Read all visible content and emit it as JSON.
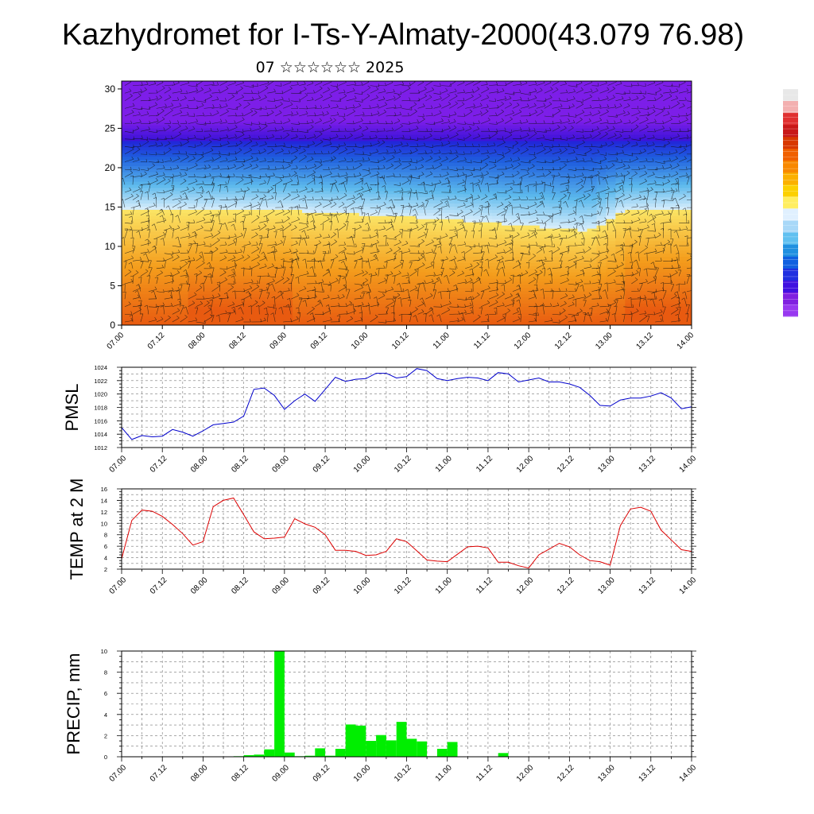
{
  "title": "Kazhydromet for I-Ts-Y-Almaty-2000(43.079 76.98)",
  "subtitle": "07 ☆☆☆☆☆☆ 2025",
  "time_ticks": [
    "07.00",
    "07.12",
    "08.00",
    "08.12",
    "09.00",
    "09.12",
    "10.00",
    "10.12",
    "11.00",
    "11.12",
    "12.00",
    "12.12",
    "13.00",
    "13.12",
    "14.00"
  ],
  "colorbar_colors": [
    "#e8e8e8",
    "#f3b0b0",
    "#e03030",
    "#c81818",
    "#d83800",
    "#f06000",
    "#f88800",
    "#fbb000",
    "#fcd000",
    "#ffee60",
    "#e0f0ff",
    "#a8d8f8",
    "#60c0f0",
    "#2090e0",
    "#1060e0",
    "#2030e0",
    "#4010e0",
    "#8020e0",
    "#9838f0"
  ],
  "chart_data": [
    {
      "type": "heatmap",
      "title": "",
      "xlabel": "",
      "ylabel": "",
      "x_ticks": [
        "07.00",
        "07.12",
        "08.00",
        "08.12",
        "09.00",
        "09.12",
        "10.00",
        "10.12",
        "11.00",
        "11.12",
        "12.00",
        "12.12",
        "13.00",
        "13.12",
        "14.00"
      ],
      "y_ticks": [
        0,
        5,
        10,
        15,
        20,
        25,
        30
      ],
      "ylim": [
        0,
        31
      ],
      "color_scale": "violet (top) – blue – light blue – yellow – orange (bottom), with wind barbs overlay",
      "layer_boundaries": [
        {
          "name": "yellow_to_blue",
          "x": [
            0,
            4,
            8,
            11.5,
            12.3,
            14
          ],
          "y": [
            14.8,
            14.6,
            13.5,
            12.0,
            14.5,
            14.8
          ]
        },
        {
          "name": "blue_to_violet",
          "x": [
            0,
            14
          ],
          "y": [
            23.5,
            23.5
          ]
        }
      ]
    },
    {
      "type": "line",
      "ylabel": "PMSL",
      "ylim": [
        1012,
        1024
      ],
      "y_ticks": [
        1012,
        1014,
        1016,
        1018,
        1020,
        1022,
        1024
      ],
      "color": "#0000cc",
      "x": [
        0,
        0.25,
        0.5,
        0.75,
        1,
        1.25,
        1.5,
        1.75,
        2,
        2.25,
        2.5,
        2.75,
        3,
        3.25,
        3.5,
        3.75,
        4,
        4.25,
        4.5,
        4.75,
        5,
        5.25,
        5.5,
        5.75,
        6,
        6.25,
        6.5,
        6.75,
        7,
        7.25,
        7.5,
        7.75,
        8,
        8.25,
        8.5,
        8.75,
        9,
        9.25,
        9.5,
        9.75,
        10,
        10.25,
        10.5,
        10.75,
        11,
        11.25,
        11.5,
        11.75,
        12,
        12.25,
        12.5,
        12.75,
        13,
        13.25,
        13.5,
        13.75,
        14
      ],
      "values": [
        1015.0,
        1013.2,
        1013.8,
        1013.6,
        1013.7,
        1014.7,
        1014.3,
        1013.7,
        1014.5,
        1015.4,
        1015.6,
        1015.8,
        1016.7,
        1020.7,
        1020.9,
        1019.8,
        1017.7,
        1019.0,
        1020.0,
        1018.9,
        1020.7,
        1022.5,
        1021.9,
        1022.2,
        1022.3,
        1023.1,
        1023.1,
        1022.4,
        1022.6,
        1023.8,
        1023.5,
        1022.3,
        1022.0,
        1022.3,
        1022.5,
        1022.4,
        1022.0,
        1023.2,
        1023.0,
        1021.8,
        1022.1,
        1022.4,
        1021.8,
        1021.8,
        1021.5,
        1021.0,
        1019.8,
        1018.3,
        1018.2,
        1019.1,
        1019.4,
        1019.4,
        1019.7,
        1020.2,
        1019.4,
        1017.8,
        1018.1
      ]
    },
    {
      "type": "line",
      "ylabel": "TEMP at 2 M",
      "ylim": [
        2,
        16
      ],
      "y_ticks": [
        2,
        4,
        6,
        8,
        10,
        12,
        14,
        16
      ],
      "color": "#dd0000",
      "x": [
        0,
        0.25,
        0.5,
        0.75,
        1,
        1.25,
        1.5,
        1.75,
        2,
        2.25,
        2.5,
        2.75,
        3,
        3.25,
        3.5,
        3.75,
        4,
        4.25,
        4.5,
        4.75,
        5,
        5.25,
        5.5,
        5.75,
        6,
        6.25,
        6.5,
        6.75,
        7,
        7.25,
        7.5,
        7.75,
        8,
        8.25,
        8.5,
        8.75,
        9,
        9.25,
        9.5,
        9.75,
        10,
        10.25,
        10.5,
        10.75,
        11,
        11.25,
        11.5,
        11.75,
        12,
        12.25,
        12.5,
        12.75,
        13,
        13.25,
        13.5,
        13.75,
        14
      ],
      "values": [
        3.8,
        10.5,
        12.3,
        12.1,
        11.2,
        9.8,
        8.2,
        6.2,
        6.8,
        12.9,
        14.0,
        14.4,
        11.5,
        8.5,
        7.3,
        7.4,
        7.6,
        10.8,
        9.9,
        9.3,
        8.0,
        5.3,
        5.3,
        5.1,
        4.4,
        4.5,
        5.1,
        7.3,
        6.8,
        5.2,
        3.6,
        3.4,
        3.3,
        4.6,
        5.9,
        6.0,
        5.7,
        3.2,
        3.2,
        2.6,
        2.2,
        4.5,
        5.5,
        6.5,
        5.9,
        4.5,
        3.5,
        3.3,
        2.7,
        9.6,
        12.5,
        12.8,
        12.1,
        8.8,
        7.1,
        5.4,
        5.1
      ]
    },
    {
      "type": "bar",
      "ylabel": "PRECIP, mm",
      "ylim": [
        0,
        10
      ],
      "y_ticks": [
        0,
        2,
        4,
        6,
        8,
        10
      ],
      "color": "#00ee00",
      "bar_start": [
        2.75,
        3,
        3.25,
        3.5,
        3.75,
        4,
        4.25,
        4.5,
        4.75,
        5,
        5.25,
        5.5,
        5.75,
        6,
        6.25,
        6.5,
        6.75,
        7,
        7.25,
        7.5,
        7.75,
        8,
        9.25
      ],
      "values": [
        0.05,
        0.15,
        0.2,
        0.7,
        10.0,
        0.4,
        0.05,
        0.1,
        0.8,
        0.1,
        0.75,
        3.05,
        2.95,
        1.5,
        2.05,
        1.55,
        3.3,
        1.7,
        1.45,
        0.05,
        0.75,
        1.4,
        0.35
      ]
    }
  ]
}
